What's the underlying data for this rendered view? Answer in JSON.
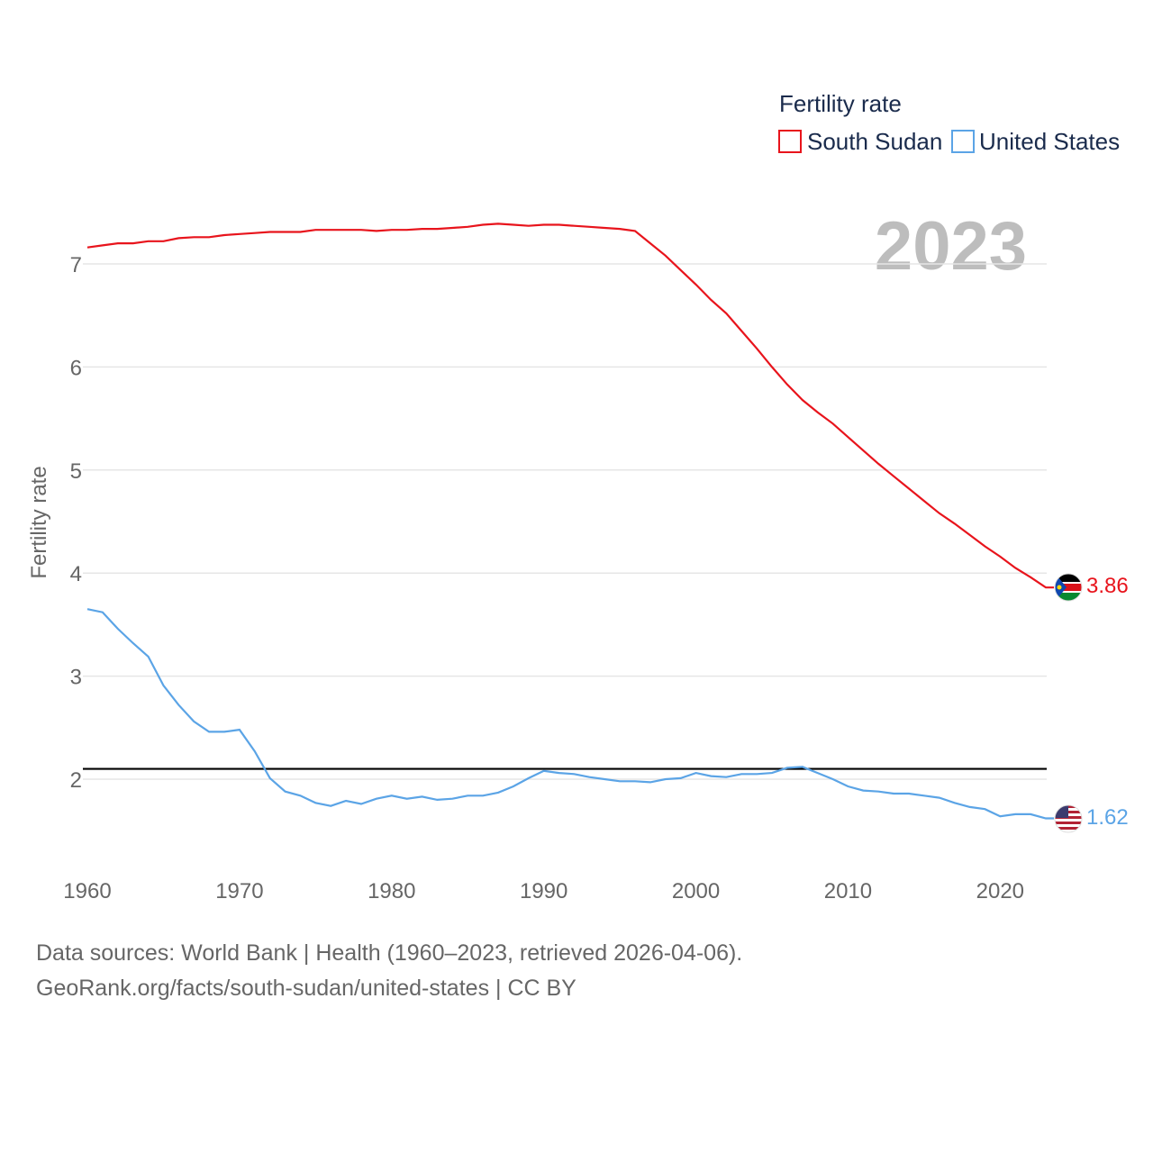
{
  "chart_data": {
    "type": "line",
    "legend_title": "Fertility rate",
    "year_label": "2023",
    "ylabel": "Fertility rate",
    "xlabel": "",
    "xlim": [
      1960,
      2023
    ],
    "ylim": [
      1.3,
      7.6
    ],
    "x_ticks": [
      1960,
      1970,
      1980,
      1990,
      2000,
      2010,
      2020
    ],
    "y_ticks": [
      2,
      3,
      4,
      5,
      6,
      7
    ],
    "reference_line": {
      "y": 2.1,
      "color": "#000000"
    },
    "x": [
      1960,
      1961,
      1962,
      1963,
      1964,
      1965,
      1966,
      1967,
      1968,
      1969,
      1970,
      1971,
      1972,
      1973,
      1974,
      1975,
      1976,
      1977,
      1978,
      1979,
      1980,
      1981,
      1982,
      1983,
      1984,
      1985,
      1986,
      1987,
      1988,
      1989,
      1990,
      1991,
      1992,
      1993,
      1994,
      1995,
      1996,
      1997,
      1998,
      1999,
      2000,
      2001,
      2002,
      2003,
      2004,
      2005,
      2006,
      2007,
      2008,
      2009,
      2010,
      2011,
      2012,
      2013,
      2014,
      2015,
      2016,
      2017,
      2018,
      2019,
      2020,
      2021,
      2022,
      2023
    ],
    "series": [
      {
        "name": "South Sudan",
        "color": "#e8141c",
        "end_label": "3.86",
        "values": [
          7.16,
          7.18,
          7.2,
          7.2,
          7.22,
          7.22,
          7.25,
          7.26,
          7.26,
          7.28,
          7.29,
          7.3,
          7.31,
          7.31,
          7.31,
          7.33,
          7.33,
          7.33,
          7.33,
          7.32,
          7.33,
          7.33,
          7.34,
          7.34,
          7.35,
          7.36,
          7.38,
          7.39,
          7.38,
          7.37,
          7.38,
          7.38,
          7.37,
          7.36,
          7.35,
          7.34,
          7.32,
          7.2,
          7.08,
          6.94,
          6.8,
          6.65,
          6.52,
          6.35,
          6.18,
          6.0,
          5.83,
          5.68,
          5.56,
          5.45,
          5.32,
          5.19,
          5.06,
          4.94,
          4.82,
          4.7,
          4.58,
          4.48,
          4.37,
          4.26,
          4.16,
          4.05,
          3.96,
          3.86
        ]
      },
      {
        "name": "United States",
        "color": "#5ba4e6",
        "end_label": "1.62",
        "values": [
          3.65,
          3.62,
          3.46,
          3.32,
          3.19,
          2.91,
          2.72,
          2.56,
          2.46,
          2.46,
          2.48,
          2.27,
          2.01,
          1.88,
          1.84,
          1.77,
          1.74,
          1.79,
          1.76,
          1.81,
          1.84,
          1.81,
          1.83,
          1.8,
          1.81,
          1.84,
          1.84,
          1.87,
          1.93,
          2.01,
          2.08,
          2.06,
          2.05,
          2.02,
          2.0,
          1.98,
          1.98,
          1.97,
          2.0,
          2.01,
          2.06,
          2.03,
          2.02,
          2.05,
          2.05,
          2.06,
          2.11,
          2.12,
          2.06,
          2.0,
          1.93,
          1.89,
          1.88,
          1.86,
          1.86,
          1.84,
          1.82,
          1.77,
          1.73,
          1.71,
          1.64,
          1.66,
          1.66,
          1.62
        ]
      }
    ]
  },
  "footer": {
    "line1": "Data sources: World Bank | Health (1960–2023, retrieved 2026-04-06).",
    "line2": "GeoRank.org/facts/south-sudan/united-states | CC BY"
  }
}
